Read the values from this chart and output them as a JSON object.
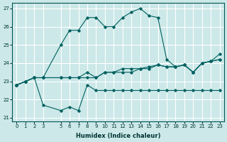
{
  "xlabel": "Humidex (Indice chaleur)",
  "ylabel": "",
  "xlim": [
    -0.5,
    23.5
  ],
  "ylim": [
    20.8,
    27.3
  ],
  "yticks": [
    21,
    22,
    23,
    24,
    25,
    26,
    27
  ],
  "xticks": [
    0,
    1,
    2,
    3,
    5,
    6,
    7,
    8,
    9,
    10,
    11,
    12,
    13,
    14,
    15,
    16,
    17,
    18,
    19,
    20,
    21,
    22,
    23
  ],
  "xtick_labels": [
    "0",
    "1",
    "2",
    "3",
    "5",
    "6",
    "7",
    "8",
    "9",
    "10",
    "11",
    "12",
    "13",
    "14",
    "15",
    "16",
    "17",
    "18",
    "19",
    "20",
    "21",
    "22",
    "23"
  ],
  "bg_color": "#cce8e8",
  "grid_color": "#ffffff",
  "line_color": "#006060",
  "lines": [
    {
      "x": [
        0,
        1,
        2,
        3,
        5,
        6,
        7,
        8,
        9,
        10,
        11,
        12,
        13,
        14,
        15,
        16,
        17,
        18,
        19,
        20,
        21,
        22,
        23
      ],
      "y": [
        22.8,
        23.0,
        23.2,
        23.2,
        25.0,
        25.8,
        25.8,
        26.5,
        26.5,
        26.0,
        26.0,
        26.5,
        26.8,
        27.0,
        26.6,
        26.5,
        24.2,
        23.8,
        23.9,
        23.5,
        24.0,
        24.1,
        24.5
      ]
    },
    {
      "x": [
        0,
        1,
        2,
        3,
        5,
        6,
        7,
        8,
        9,
        10,
        11,
        12,
        13,
        14,
        15,
        16,
        17,
        18,
        19,
        20,
        21,
        22,
        23
      ],
      "y": [
        22.8,
        23.0,
        23.2,
        23.2,
        23.2,
        23.2,
        23.2,
        23.2,
        23.2,
        23.5,
        23.5,
        23.5,
        23.5,
        23.7,
        23.8,
        23.9,
        23.8,
        23.8,
        23.9,
        23.5,
        24.0,
        24.1,
        24.2
      ]
    },
    {
      "x": [
        0,
        1,
        2,
        3,
        5,
        6,
        7,
        8,
        9,
        10,
        11,
        12,
        13,
        14,
        15,
        16,
        17,
        18,
        19,
        20,
        21,
        22,
        23
      ],
      "y": [
        22.8,
        23.0,
        23.2,
        23.2,
        23.2,
        23.2,
        23.2,
        23.5,
        23.2,
        23.5,
        23.5,
        23.7,
        23.7,
        23.7,
        23.7,
        23.9,
        23.8,
        23.8,
        23.9,
        23.5,
        24.0,
        24.1,
        24.2
      ]
    },
    {
      "x": [
        0,
        1,
        2,
        3,
        5,
        6,
        7,
        8,
        9,
        10,
        11,
        12,
        13,
        14,
        15,
        16,
        17,
        18,
        19,
        20,
        21,
        22,
        23
      ],
      "y": [
        22.8,
        23.0,
        23.2,
        21.7,
        21.4,
        21.6,
        21.4,
        22.8,
        22.5,
        22.5,
        22.5,
        22.5,
        22.5,
        22.5,
        22.5,
        22.5,
        22.5,
        22.5,
        22.5,
        22.5,
        22.5,
        22.5,
        22.5
      ]
    }
  ]
}
